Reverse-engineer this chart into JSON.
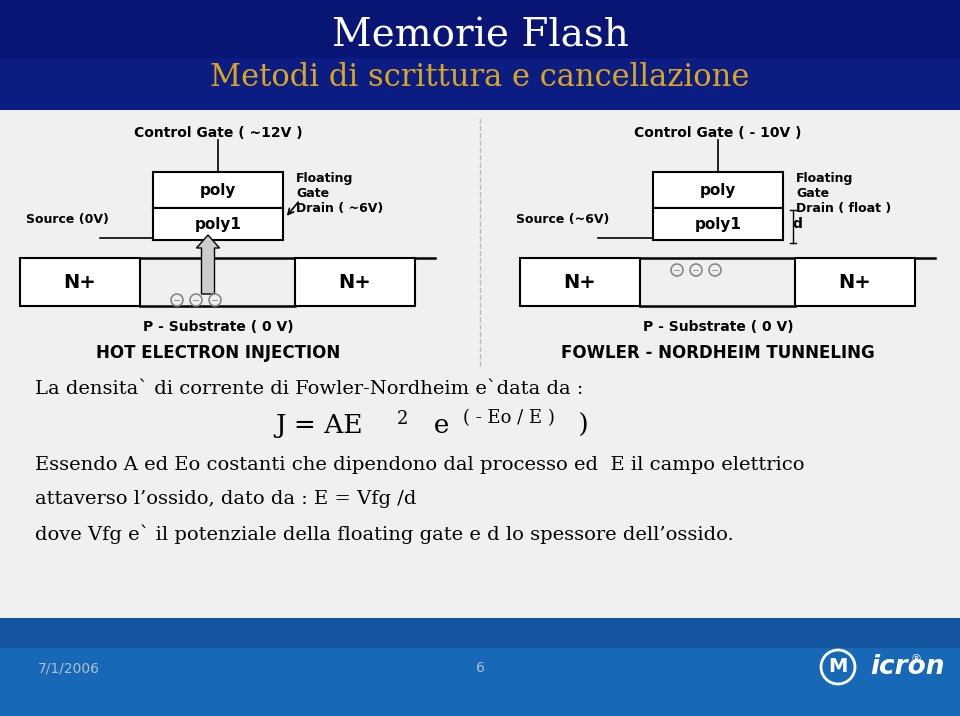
{
  "title": "Memorie Flash",
  "subtitle": "Metodi di scrittura e cancellazione",
  "title_color": "#FFFFFF",
  "subtitle_color": "#DAA520",
  "date_text": "7/1/2006",
  "page_num": "6",
  "left_label_cg": "Control Gate ( ~12V )",
  "right_label_cg": "Control Gate ( - 10V )",
  "left_poly": "poly",
  "right_poly": "poly",
  "left_poly1": "poly1",
  "right_poly1": "poly1",
  "left_source": "Source (0V)",
  "right_source": "Source (~6V)",
  "left_drain_label": "Floating\nGate\nDrain ( ~6V)",
  "right_drain_label": "Floating\nGate\nDrain ( float )",
  "left_substrate": "P - Substrate ( 0 V)",
  "right_substrate": "P - Substrate ( 0 V)",
  "left_method": "HOT ELECTRON INJECTION",
  "right_method": "FOWLER - NORDHEIM TUNNELING",
  "right_d_label": "d",
  "body_text1": "La densita` di corrente di Fowler-Nordheim e`data da :",
  "body_text2": "Essendo A ed Eo costanti che dipendono dal processo ed  E il campo elettrico",
  "body_text3": "attaverso l’ossido, dato da : E = Vfg /d",
  "body_text4": "dove Vfg e` il potenziale della floating gate e d lo spessore dell’ossido."
}
